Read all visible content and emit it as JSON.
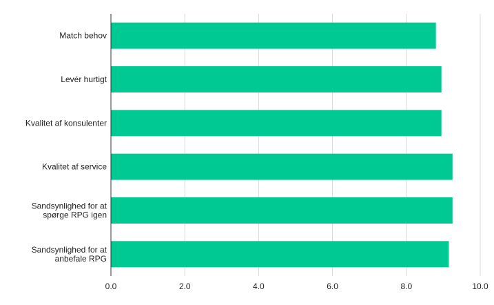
{
  "colors": {
    "bar": "#00c993",
    "grid": "#d9d9d9",
    "axis": "#333333",
    "text": "#222222"
  },
  "chart_data": {
    "type": "bar",
    "orientation": "horizontal",
    "title": "",
    "xlabel": "",
    "ylabel": "",
    "categories": [
      [
        "Match behov"
      ],
      [
        "Levér hurtigt"
      ],
      [
        "Kvalitet af konsulenter"
      ],
      [
        "Kvalitet af service"
      ],
      [
        "Sandsynlighed for at",
        "spørge RPG igen"
      ],
      [
        "Sandsynlighed for at",
        "anbefale RPG"
      ]
    ],
    "values": [
      8.8,
      8.95,
      8.95,
      9.25,
      9.25,
      9.15
    ],
    "xlim": [
      0,
      10
    ],
    "xticks": [
      "0.0",
      "2.0",
      "4.0",
      "6.0",
      "8.0",
      "10.0"
    ],
    "grid": true,
    "legend": "none"
  }
}
